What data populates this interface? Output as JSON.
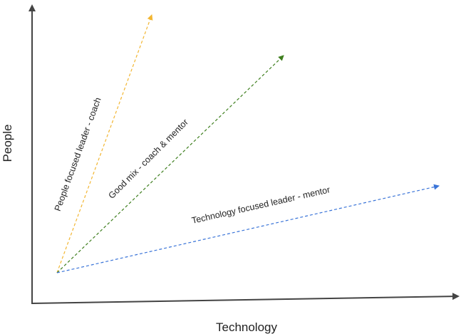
{
  "axes": {
    "x_label": "Technology",
    "y_label": "People",
    "color": "#444444"
  },
  "arrows": [
    {
      "id": "people-focused",
      "label": "People focused leader - coach",
      "color": "#f2b632"
    },
    {
      "id": "good-mix",
      "label": "Good mix - coach & mentor",
      "color": "#3f7f1f"
    },
    {
      "id": "technology-focused",
      "label": "Technology focused leader - mentor",
      "color": "#3a74d8"
    }
  ]
}
